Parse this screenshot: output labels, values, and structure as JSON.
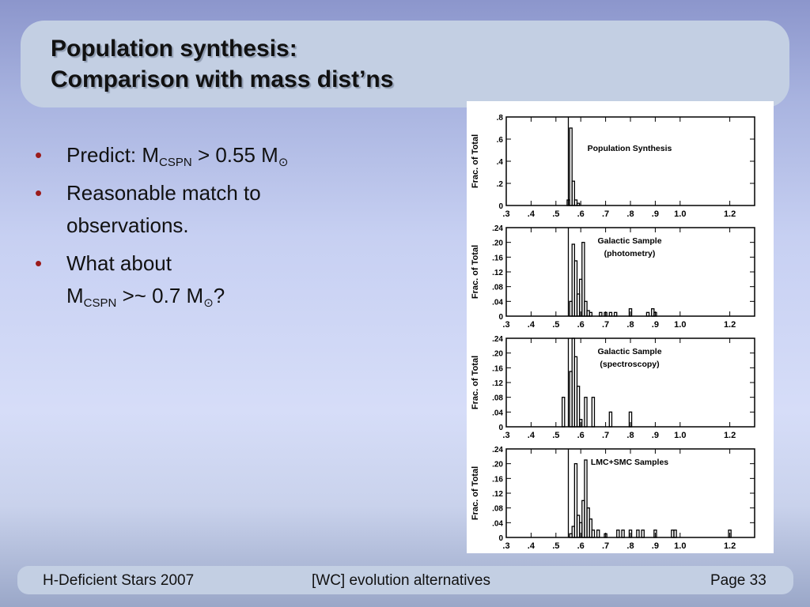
{
  "slide": {
    "title_line1": "Population synthesis:",
    "title_line2": "Comparison with mass dist’ns"
  },
  "bullets": [
    {
      "bullet": "•",
      "pre": "Predict: M",
      "sub": "CSPN",
      "post": " > 0.55 M",
      "sub2": "⊙",
      "tail": ""
    },
    {
      "bullet": "•",
      "line1": "Reasonable match to",
      "line2": "observations."
    },
    {
      "bullet": "•",
      "line1": "What about",
      "pre": "M",
      "sub": "CSPN",
      "post": " >~ 0.7 M",
      "sub2": "⊙",
      "tail": "?"
    }
  ],
  "footer": {
    "left": "H-Deficient Stars 2007",
    "center": "[WC] evolution alternatives",
    "right": "Page 33"
  },
  "colors": {
    "title_box": "#c3cfe3",
    "bullet_marker": "#9b1b1b",
    "footer_box": "#c3cfe3"
  },
  "chart_data": [
    {
      "type": "bar",
      "title": "Population Synthesis",
      "ylabel": "Frac. of Total",
      "xlim": [
        0.3,
        1.3
      ],
      "ylim": [
        0,
        0.8
      ],
      "yticks": [
        ".8",
        ".6",
        ".4",
        ".2",
        "0"
      ],
      "ytick_values": [
        0.8,
        0.6,
        0.4,
        0.2,
        0
      ],
      "xticks": [
        ".3",
        ".4",
        ".5",
        ".6",
        ".7",
        ".8",
        ".9",
        "1.0",
        "1.2"
      ],
      "xtick_values": [
        0.3,
        0.4,
        0.5,
        0.6,
        0.7,
        0.8,
        0.9,
        1.0,
        1.2
      ],
      "reference_line_x": 0.55,
      "bin_width": 0.01,
      "bins": [
        {
          "x": 0.55,
          "y": 0.05
        },
        {
          "x": 0.56,
          "y": 0.7
        },
        {
          "x": 0.57,
          "y": 0.22
        },
        {
          "x": 0.58,
          "y": 0.05
        },
        {
          "x": 0.59,
          "y": 0.02
        }
      ]
    },
    {
      "type": "bar",
      "title": "Galactic Sample",
      "subtitle": "(photometry)",
      "ylabel": "Frac. of Total",
      "xlim": [
        0.3,
        1.3
      ],
      "ylim": [
        0,
        0.24
      ],
      "yticks": [
        ".24",
        ".20",
        ".16",
        ".12",
        ".08",
        ".04",
        "0"
      ],
      "ytick_values": [
        0.24,
        0.2,
        0.16,
        0.12,
        0.08,
        0.04,
        0
      ],
      "xticks": [
        ".3",
        ".4",
        ".5",
        ".6",
        ".7",
        ".8",
        ".9",
        "1.0",
        "1.2"
      ],
      "xtick_values": [
        0.3,
        0.4,
        0.5,
        0.6,
        0.7,
        0.8,
        0.9,
        1.0,
        1.2
      ],
      "reference_line_x": 0.55,
      "bin_width": 0.01,
      "bins": [
        {
          "x": 0.56,
          "y": 0.04
        },
        {
          "x": 0.57,
          "y": 0.195
        },
        {
          "x": 0.58,
          "y": 0.15
        },
        {
          "x": 0.59,
          "y": 0.06
        },
        {
          "x": 0.6,
          "y": 0.1
        },
        {
          "x": 0.61,
          "y": 0.2
        },
        {
          "x": 0.62,
          "y": 0.04
        },
        {
          "x": 0.63,
          "y": 0.015
        },
        {
          "x": 0.64,
          "y": 0.01
        },
        {
          "x": 0.68,
          "y": 0.01
        },
        {
          "x": 0.7,
          "y": 0.01
        },
        {
          "x": 0.72,
          "y": 0.01
        },
        {
          "x": 0.74,
          "y": 0.01
        },
        {
          "x": 0.8,
          "y": 0.02
        },
        {
          "x": 0.87,
          "y": 0.01
        },
        {
          "x": 0.89,
          "y": 0.02
        },
        {
          "x": 0.9,
          "y": 0.01
        }
      ]
    },
    {
      "type": "bar",
      "title": "Galactic Sample",
      "subtitle": "(spectroscopy)",
      "ylabel": "Frac. of Total",
      "xlim": [
        0.3,
        1.3
      ],
      "ylim": [
        0,
        0.24
      ],
      "yticks": [
        ".24",
        ".20",
        ".16",
        ".12",
        ".08",
        ".04",
        "0"
      ],
      "ytick_values": [
        0.24,
        0.2,
        0.16,
        0.12,
        0.08,
        0.04,
        0
      ],
      "xticks": [
        ".3",
        ".4",
        ".5",
        ".6",
        ".7",
        ".8",
        ".9",
        "1.0",
        "1.2"
      ],
      "xtick_values": [
        0.3,
        0.4,
        0.5,
        0.6,
        0.7,
        0.8,
        0.9,
        1.0,
        1.2
      ],
      "reference_line_x": 0.55,
      "bin_width": 0.01,
      "bins": [
        {
          "x": 0.53,
          "y": 0.08
        },
        {
          "x": 0.56,
          "y": 0.15
        },
        {
          "x": 0.57,
          "y": 0.24
        },
        {
          "x": 0.58,
          "y": 0.19
        },
        {
          "x": 0.59,
          "y": 0.11
        },
        {
          "x": 0.6,
          "y": 0.02
        },
        {
          "x": 0.62,
          "y": 0.08
        },
        {
          "x": 0.65,
          "y": 0.08
        },
        {
          "x": 0.72,
          "y": 0.04
        },
        {
          "x": 0.8,
          "y": 0.04
        }
      ]
    },
    {
      "type": "bar",
      "title": "LMC+SMC Samples",
      "ylabel": "Frac. of Total",
      "xlim": [
        0.3,
        1.3
      ],
      "ylim": [
        0,
        0.24
      ],
      "yticks": [
        ".24",
        ".20",
        ".16",
        ".12",
        ".08",
        ".04",
        "0"
      ],
      "ytick_values": [
        0.24,
        0.2,
        0.16,
        0.12,
        0.08,
        0.04,
        0
      ],
      "xticks": [
        ".3",
        ".4",
        ".5",
        ".6",
        ".7",
        ".8",
        ".9",
        "1.0",
        "1.2"
      ],
      "xtick_values": [
        0.3,
        0.4,
        0.5,
        0.6,
        0.7,
        0.8,
        0.9,
        1.0,
        1.2
      ],
      "reference_line_x": 0.55,
      "bin_width": 0.01,
      "bins": [
        {
          "x": 0.56,
          "y": 0.01
        },
        {
          "x": 0.57,
          "y": 0.03
        },
        {
          "x": 0.58,
          "y": 0.2
        },
        {
          "x": 0.59,
          "y": 0.06
        },
        {
          "x": 0.6,
          "y": 0.04
        },
        {
          "x": 0.61,
          "y": 0.1
        },
        {
          "x": 0.62,
          "y": 0.21
        },
        {
          "x": 0.63,
          "y": 0.08
        },
        {
          "x": 0.64,
          "y": 0.05
        },
        {
          "x": 0.65,
          "y": 0.02
        },
        {
          "x": 0.67,
          "y": 0.02
        },
        {
          "x": 0.7,
          "y": 0.01
        },
        {
          "x": 0.75,
          "y": 0.02
        },
        {
          "x": 0.77,
          "y": 0.02
        },
        {
          "x": 0.8,
          "y": 0.02
        },
        {
          "x": 0.83,
          "y": 0.02
        },
        {
          "x": 0.85,
          "y": 0.02
        },
        {
          "x": 0.9,
          "y": 0.02
        },
        {
          "x": 0.97,
          "y": 0.02
        },
        {
          "x": 0.98,
          "y": 0.02
        },
        {
          "x": 1.2,
          "y": 0.02
        }
      ]
    }
  ]
}
